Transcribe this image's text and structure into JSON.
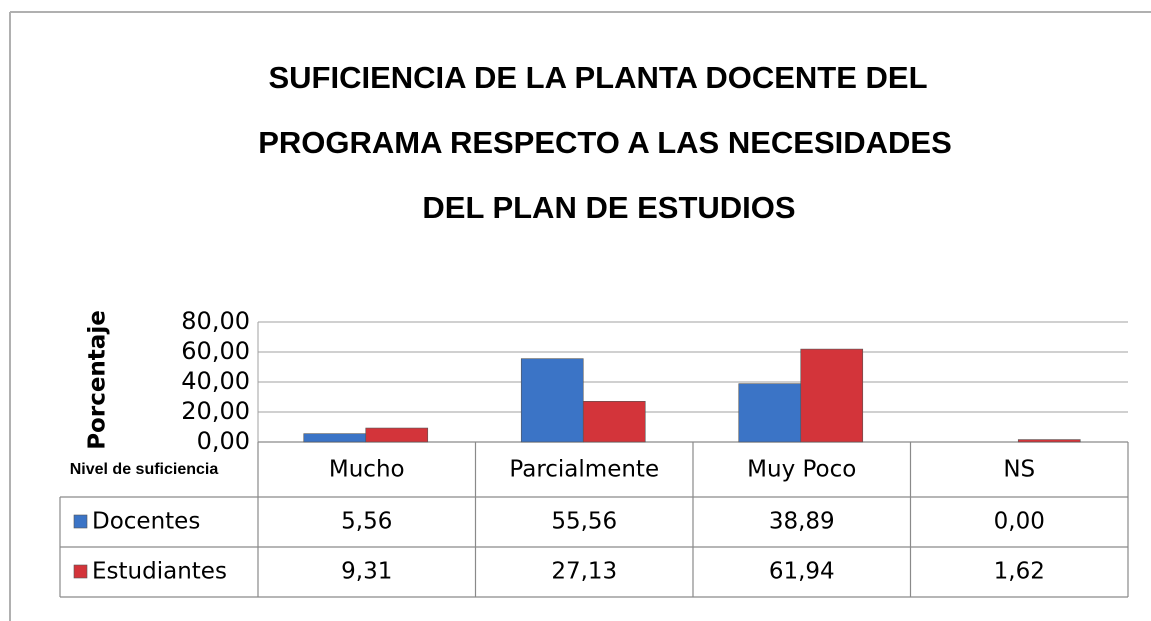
{
  "chart_data": {
    "type": "bar",
    "title_lines": [
      "SUFICIENCIA DE LA PLANTA DOCENTE DEL",
      "PROGRAMA RESPECTO A LAS NECESIDADES",
      "DEL PLAN DE ESTUDIOS"
    ],
    "y_label": "Porcentaje",
    "x_label": "Nivel de suficiencia",
    "categories": [
      "Mucho",
      "Parcialmente",
      "Muy Poco",
      "NS"
    ],
    "series": [
      {
        "name": "Docentes",
        "color": "#3b74c6",
        "values": [
          5.56,
          55.56,
          38.89,
          0.0
        ],
        "value_labels": [
          "5,56",
          "55,56",
          "38,89",
          "0,00"
        ]
      },
      {
        "name": "Estudiantes",
        "color": "#d3343a",
        "values": [
          9.31,
          27.13,
          61.94,
          1.62
        ],
        "value_labels": [
          "9,31",
          "27,13",
          "61,94",
          "1,62"
        ]
      }
    ],
    "ylim": [
      0,
      80
    ],
    "yticks": [
      {
        "value": 0,
        "label": "0,00"
      },
      {
        "value": 20,
        "label": "20,00"
      },
      {
        "value": 40,
        "label": "40,00"
      },
      {
        "value": 60,
        "label": "60,00"
      },
      {
        "value": 80,
        "label": "80,00"
      }
    ],
    "grid": true
  }
}
